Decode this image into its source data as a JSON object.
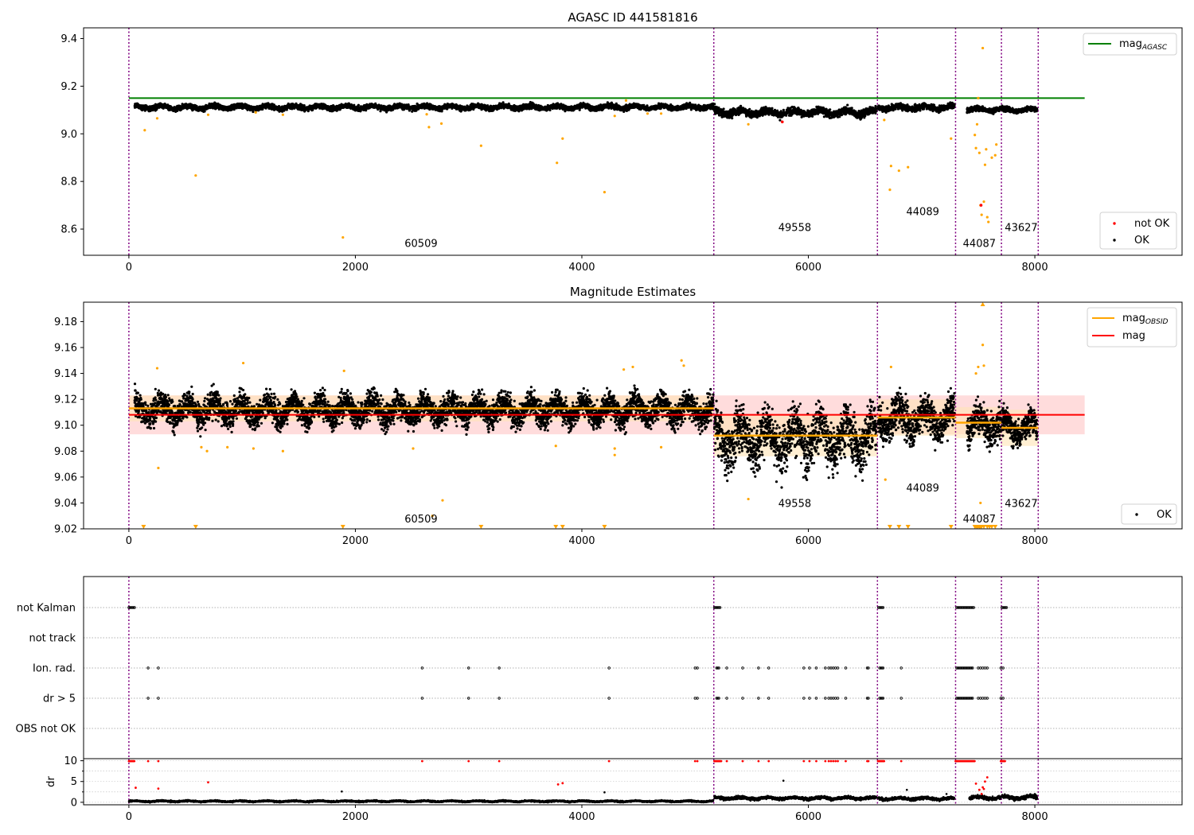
{
  "chart_data": [
    {
      "type": "scatter",
      "title": "AGASC ID 441581816",
      "xlim": [
        -400,
        9300
      ],
      "ylim": [
        8.49,
        9.445
      ],
      "xticks": [
        0,
        2000,
        4000,
        6000,
        8000
      ],
      "yticks": [
        8.6,
        8.8,
        9.0,
        9.2,
        9.4
      ],
      "mag_agasc": 9.15,
      "mag_agasc_x_range": [
        0,
        8440
      ],
      "obsid_boundaries": [
        0,
        5165,
        6610,
        7300,
        7705,
        8030
      ],
      "obsid_labels": [
        {
          "text": "60509",
          "x": 2580,
          "y": 8.525
        },
        {
          "text": "49558",
          "x": 5880,
          "y": 8.592
        },
        {
          "text": "44089",
          "x": 7010,
          "y": 8.659
        },
        {
          "text": "44087",
          "x": 7510,
          "y": 8.525
        },
        {
          "text": "43627",
          "x": 7880,
          "y": 8.592
        }
      ],
      "ok_segments": [
        {
          "x0": 50,
          "x1": 5160,
          "mean": 9.112,
          "spread": 0.012
        },
        {
          "x0": 5170,
          "x1": 6600,
          "mean": 9.09,
          "spread": 0.018
        },
        {
          "x0": 6615,
          "x1": 7290,
          "mean": 9.11,
          "spread": 0.014
        },
        {
          "x0": 7400,
          "x1": 7700,
          "mean": 9.102,
          "spread": 0.012
        },
        {
          "x0": 7710,
          "x1": 8020,
          "mean": 9.1,
          "spread": 0.012
        }
      ],
      "suspect_points": [
        {
          "x": 140,
          "y": 9.015
        },
        {
          "x": 250,
          "y": 9.065
        },
        {
          "x": 590,
          "y": 8.825
        },
        {
          "x": 700,
          "y": 9.08
        },
        {
          "x": 1120,
          "y": 9.09
        },
        {
          "x": 1360,
          "y": 9.08
        },
        {
          "x": 1890,
          "y": 8.565
        },
        {
          "x": 2630,
          "y": 9.082
        },
        {
          "x": 2650,
          "y": 9.028
        },
        {
          "x": 2760,
          "y": 9.043
        },
        {
          "x": 3110,
          "y": 8.95
        },
        {
          "x": 3780,
          "y": 8.878
        },
        {
          "x": 3830,
          "y": 8.98
        },
        {
          "x": 4200,
          "y": 8.755
        },
        {
          "x": 4290,
          "y": 9.075
        },
        {
          "x": 4390,
          "y": 9.14
        },
        {
          "x": 4580,
          "y": 9.085
        },
        {
          "x": 4700,
          "y": 9.085
        },
        {
          "x": 5470,
          "y": 9.04
        },
        {
          "x": 6670,
          "y": 9.058
        },
        {
          "x": 6720,
          "y": 8.765
        },
        {
          "x": 6730,
          "y": 8.865
        },
        {
          "x": 6800,
          "y": 8.845
        },
        {
          "x": 6880,
          "y": 8.86
        },
        {
          "x": 7260,
          "y": 8.98
        },
        {
          "x": 7470,
          "y": 8.995
        },
        {
          "x": 7480,
          "y": 8.94
        },
        {
          "x": 7490,
          "y": 9.04
        },
        {
          "x": 7500,
          "y": 9.15
        },
        {
          "x": 7510,
          "y": 8.92
        },
        {
          "x": 7520,
          "y": 8.7
        },
        {
          "x": 7530,
          "y": 8.66
        },
        {
          "x": 7540,
          "y": 9.36
        },
        {
          "x": 7550,
          "y": 8.715
        },
        {
          "x": 7560,
          "y": 8.87
        },
        {
          "x": 7570,
          "y": 8.935
        },
        {
          "x": 7580,
          "y": 8.65
        },
        {
          "x": 7590,
          "y": 8.63
        },
        {
          "x": 7620,
          "y": 8.9
        },
        {
          "x": 7650,
          "y": 8.91
        },
        {
          "x": 7660,
          "y": 8.955
        }
      ],
      "not_ok_points": [
        {
          "x": 5770,
          "y": 9.05
        },
        {
          "x": 7525,
          "y": 8.7
        }
      ],
      "legends": [
        {
          "position": "upper-right",
          "entries": [
            {
              "label": "mag",
              "sub": "AGASC",
              "color": "#008000"
            }
          ]
        },
        {
          "position": "lower-right",
          "entries": [
            {
              "label": "not OK",
              "color": "#ff0000"
            },
            {
              "label": "OK",
              "color": "#000000"
            }
          ]
        }
      ]
    },
    {
      "type": "scatter",
      "title": "Magnitude Estimates",
      "xlim": [
        -400,
        9300
      ],
      "ylim": [
        9.02,
        9.195
      ],
      "xticks": [
        0,
        2000,
        4000,
        6000,
        8000
      ],
      "yticks": [
        9.02,
        9.04,
        9.06,
        9.08,
        9.1,
        9.12,
        9.14,
        9.16,
        9.18
      ],
      "mag": 9.108,
      "mag_band": [
        9.093,
        9.123
      ],
      "mag_x_range": [
        0,
        8440
      ],
      "mag_obsid": [
        {
          "x0": 0,
          "x1": 5165,
          "value": 9.113,
          "band": [
            9.103,
            9.123
          ]
        },
        {
          "x0": 5165,
          "x1": 6610,
          "value": 9.092,
          "band": [
            9.076,
            9.108
          ]
        },
        {
          "x0": 6610,
          "x1": 7300,
          "value": 9.106,
          "band": [
            9.092,
            9.12
          ]
        },
        {
          "x0": 7300,
          "x1": 7705,
          "value": 9.102,
          "band": [
            9.09,
            9.114
          ]
        },
        {
          "x0": 7705,
          "x1": 8030,
          "value": 9.098,
          "band": [
            9.084,
            9.112
          ]
        }
      ],
      "obsid_labels": [
        {
          "text": "60509",
          "x": 2580,
          "y": 9.025
        },
        {
          "text": "49558",
          "x": 5880,
          "y": 9.037
        },
        {
          "text": "44089",
          "x": 7010,
          "y": 9.049
        },
        {
          "text": "44087",
          "x": 7510,
          "y": 9.025
        },
        {
          "text": "43627",
          "x": 7880,
          "y": 9.037
        }
      ],
      "ok_segments": [
        {
          "x0": 50,
          "x1": 5160,
          "mean": 9.112,
          "spread": 0.012
        },
        {
          "x0": 5170,
          "x1": 6600,
          "mean": 9.09,
          "spread": 0.022
        },
        {
          "x0": 6615,
          "x1": 7290,
          "mean": 9.105,
          "spread": 0.016
        },
        {
          "x0": 7400,
          "x1": 7700,
          "mean": 9.1,
          "spread": 0.014
        },
        {
          "x0": 7710,
          "x1": 8020,
          "mean": 9.098,
          "spread": 0.013
        }
      ],
      "suspect_points": [
        {
          "x": 250,
          "y": 9.144
        },
        {
          "x": 260,
          "y": 9.067
        },
        {
          "x": 640,
          "y": 9.083
        },
        {
          "x": 690,
          "y": 9.08
        },
        {
          "x": 870,
          "y": 9.083
        },
        {
          "x": 1010,
          "y": 9.148
        },
        {
          "x": 1100,
          "y": 9.082
        },
        {
          "x": 1360,
          "y": 9.08
        },
        {
          "x": 1900,
          "y": 9.142
        },
        {
          "x": 2510,
          "y": 9.082
        },
        {
          "x": 2770,
          "y": 9.042
        },
        {
          "x": 2680,
          "y": 9.03
        },
        {
          "x": 3770,
          "y": 9.084
        },
        {
          "x": 4290,
          "y": 9.082
        },
        {
          "x": 4290,
          "y": 9.077
        },
        {
          "x": 4370,
          "y": 9.143
        },
        {
          "x": 4450,
          "y": 9.145
        },
        {
          "x": 4700,
          "y": 9.083
        },
        {
          "x": 4880,
          "y": 9.15
        },
        {
          "x": 4900,
          "y": 9.146
        },
        {
          "x": 5470,
          "y": 9.043
        },
        {
          "x": 6680,
          "y": 9.058
        },
        {
          "x": 6730,
          "y": 9.145
        },
        {
          "x": 7480,
          "y": 9.14
        },
        {
          "x": 7500,
          "y": 9.145
        },
        {
          "x": 7520,
          "y": 9.04
        },
        {
          "x": 7540,
          "y": 9.162
        },
        {
          "x": 7550,
          "y": 9.146
        }
      ],
      "below_axis_x": [
        130,
        590,
        1890,
        3110,
        3770,
        3830,
        4200,
        6720,
        6800,
        6880,
        7260,
        7470,
        7480,
        7490,
        7500,
        7510,
        7520,
        7530,
        7550,
        7580,
        7600,
        7620,
        7650
      ],
      "above_axis_x": [
        7540
      ],
      "legends": [
        {
          "position": "upper-right",
          "entries": [
            {
              "label": "mag",
              "sub": "OBSID",
              "color": "#ffa500"
            },
            {
              "label": "mag",
              "color": "#ff0000"
            }
          ]
        },
        {
          "position": "lower-right",
          "entries": [
            {
              "label": "OK",
              "color": "#000000"
            }
          ]
        }
      ]
    },
    {
      "type": "scatter",
      "title": "",
      "xlim": [
        -400,
        9300
      ],
      "xticks": [
        0,
        2000,
        4000,
        6000,
        8000
      ],
      "flag_rows": [
        "not Kalman",
        "not track",
        "Ion. rad.",
        "dr > 5",
        "OBS not OK"
      ],
      "flag_points": {
        "not Kalman": [
          0,
          10,
          20,
          30,
          40,
          50,
          5170,
          5180,
          5190,
          5200,
          5210,
          5220,
          6620,
          6630,
          6640,
          6650,
          6660,
          7310,
          7320,
          7330,
          7340,
          7350,
          7360,
          7370,
          7380,
          7390,
          7400,
          7410,
          7420,
          7430,
          7440,
          7450,
          7460,
          7710,
          7720,
          7730,
          7740,
          7750
        ],
        "not track": [],
        "Ion. rad.": [
          170,
          260,
          2590,
          3000,
          3270,
          4240,
          5000,
          5020,
          5190,
          5200,
          5210,
          5280,
          5420,
          5560,
          5650,
          5960,
          6010,
          6070,
          6150,
          6180,
          6200,
          6220,
          6240,
          6260,
          6330,
          6520,
          6530,
          6630,
          6640,
          6650,
          6660,
          6820,
          7310,
          7320,
          7330,
          7340,
          7350,
          7360,
          7370,
          7380,
          7390,
          7400,
          7410,
          7420,
          7430,
          7440,
          7450,
          7500,
          7520,
          7540,
          7560,
          7580,
          7700,
          7720
        ],
        "dr > 5": [
          170,
          260,
          2590,
          3000,
          3270,
          4240,
          5000,
          5020,
          5190,
          5200,
          5210,
          5280,
          5420,
          5560,
          5650,
          5960,
          6010,
          6070,
          6150,
          6180,
          6200,
          6220,
          6240,
          6260,
          6330,
          6520,
          6530,
          6630,
          6640,
          6650,
          6660,
          6820,
          7310,
          7320,
          7330,
          7340,
          7350,
          7360,
          7370,
          7380,
          7390,
          7400,
          7410,
          7420,
          7430,
          7440,
          7450,
          7500,
          7520,
          7540,
          7560,
          7580,
          7700,
          7720
        ],
        "OBS not OK": []
      },
      "dr": {
        "ylabel": "dr",
        "ylim": [
          -0.6,
          10.5
        ],
        "yticks": [
          0,
          5,
          10
        ],
        "baseline_segments": [
          {
            "x0": 0,
            "x1": 5160,
            "mean": 0.25,
            "spread": 0.2
          },
          {
            "x0": 5170,
            "x1": 6600,
            "mean": 1.0,
            "spread": 0.4
          },
          {
            "x0": 6615,
            "x1": 7290,
            "mean": 0.9,
            "spread": 0.4
          },
          {
            "x0": 7420,
            "x1": 7700,
            "mean": 1.1,
            "spread": 0.5
          },
          {
            "x0": 7710,
            "x1": 8020,
            "mean": 1.2,
            "spread": 0.5
          }
        ],
        "black_points": [
          {
            "x": 1880,
            "y": 2.6
          },
          {
            "x": 4200,
            "y": 2.4
          },
          {
            "x": 5780,
            "y": 5.2
          },
          {
            "x": 6870,
            "y": 3.0
          },
          {
            "x": 7220,
            "y": 2.0
          },
          {
            "x": 8000,
            "y": 2.0
          }
        ],
        "red_points": [
          {
            "x": 60,
            "y": 3.5
          },
          {
            "x": 170,
            "y": 9.9
          },
          {
            "x": 260,
            "y": 3.3
          },
          {
            "x": 260,
            "y": 9.9
          },
          {
            "x": 700,
            "y": 4.8
          },
          {
            "x": 2590,
            "y": 9.9
          },
          {
            "x": 3000,
            "y": 9.9
          },
          {
            "x": 3270,
            "y": 9.9
          },
          {
            "x": 3790,
            "y": 4.3
          },
          {
            "x": 3830,
            "y": 4.6
          },
          {
            "x": 4240,
            "y": 9.9
          },
          {
            "x": 5000,
            "y": 9.9
          },
          {
            "x": 5020,
            "y": 9.9
          },
          {
            "x": 5280,
            "y": 9.9
          },
          {
            "x": 5420,
            "y": 9.9
          },
          {
            "x": 5560,
            "y": 9.9
          },
          {
            "x": 5650,
            "y": 9.9
          },
          {
            "x": 5960,
            "y": 9.9
          },
          {
            "x": 6010,
            "y": 9.9
          },
          {
            "x": 6070,
            "y": 9.9
          },
          {
            "x": 6150,
            "y": 9.9
          },
          {
            "x": 6180,
            "y": 9.9
          },
          {
            "x": 6200,
            "y": 9.9
          },
          {
            "x": 6220,
            "y": 9.9
          },
          {
            "x": 6240,
            "y": 9.9
          },
          {
            "x": 6260,
            "y": 9.9
          },
          {
            "x": 6330,
            "y": 9.9
          },
          {
            "x": 6520,
            "y": 9.9
          },
          {
            "x": 6530,
            "y": 9.9
          },
          {
            "x": 6820,
            "y": 9.9
          },
          {
            "x": 7480,
            "y": 4.5
          },
          {
            "x": 7510,
            "y": 3.0
          },
          {
            "x": 7530,
            "y": 2.0
          },
          {
            "x": 7540,
            "y": 3.6
          },
          {
            "x": 7550,
            "y": 3.2
          },
          {
            "x": 7560,
            "y": 5.0
          },
          {
            "x": 7580,
            "y": 6.0
          },
          {
            "x": 7700,
            "y": 9.9
          },
          {
            "x": 7720,
            "y": 9.9
          }
        ],
        "red_clusters": [
          {
            "x0": 0,
            "x1": 50,
            "y": 9.9
          },
          {
            "x0": 5170,
            "x1": 5230,
            "y": 9.9
          },
          {
            "x0": 6615,
            "x1": 6670,
            "y": 9.9
          },
          {
            "x0": 7300,
            "x1": 7470,
            "y": 9.9
          },
          {
            "x0": 7700,
            "x1": 7740,
            "y": 9.9
          }
        ]
      }
    }
  ],
  "colors": {
    "ok": "#000000",
    "not_ok": "#ff0000",
    "suspect": "#ffa500",
    "mag_agasc": "#008000",
    "mag": "#ff0000",
    "mag_obsid": "#ffa500",
    "mag_band": "#ffc0c0",
    "mag_obsid_band": "#ffe4b5",
    "obsid_line": "#800080",
    "flag_point": "#000000"
  }
}
